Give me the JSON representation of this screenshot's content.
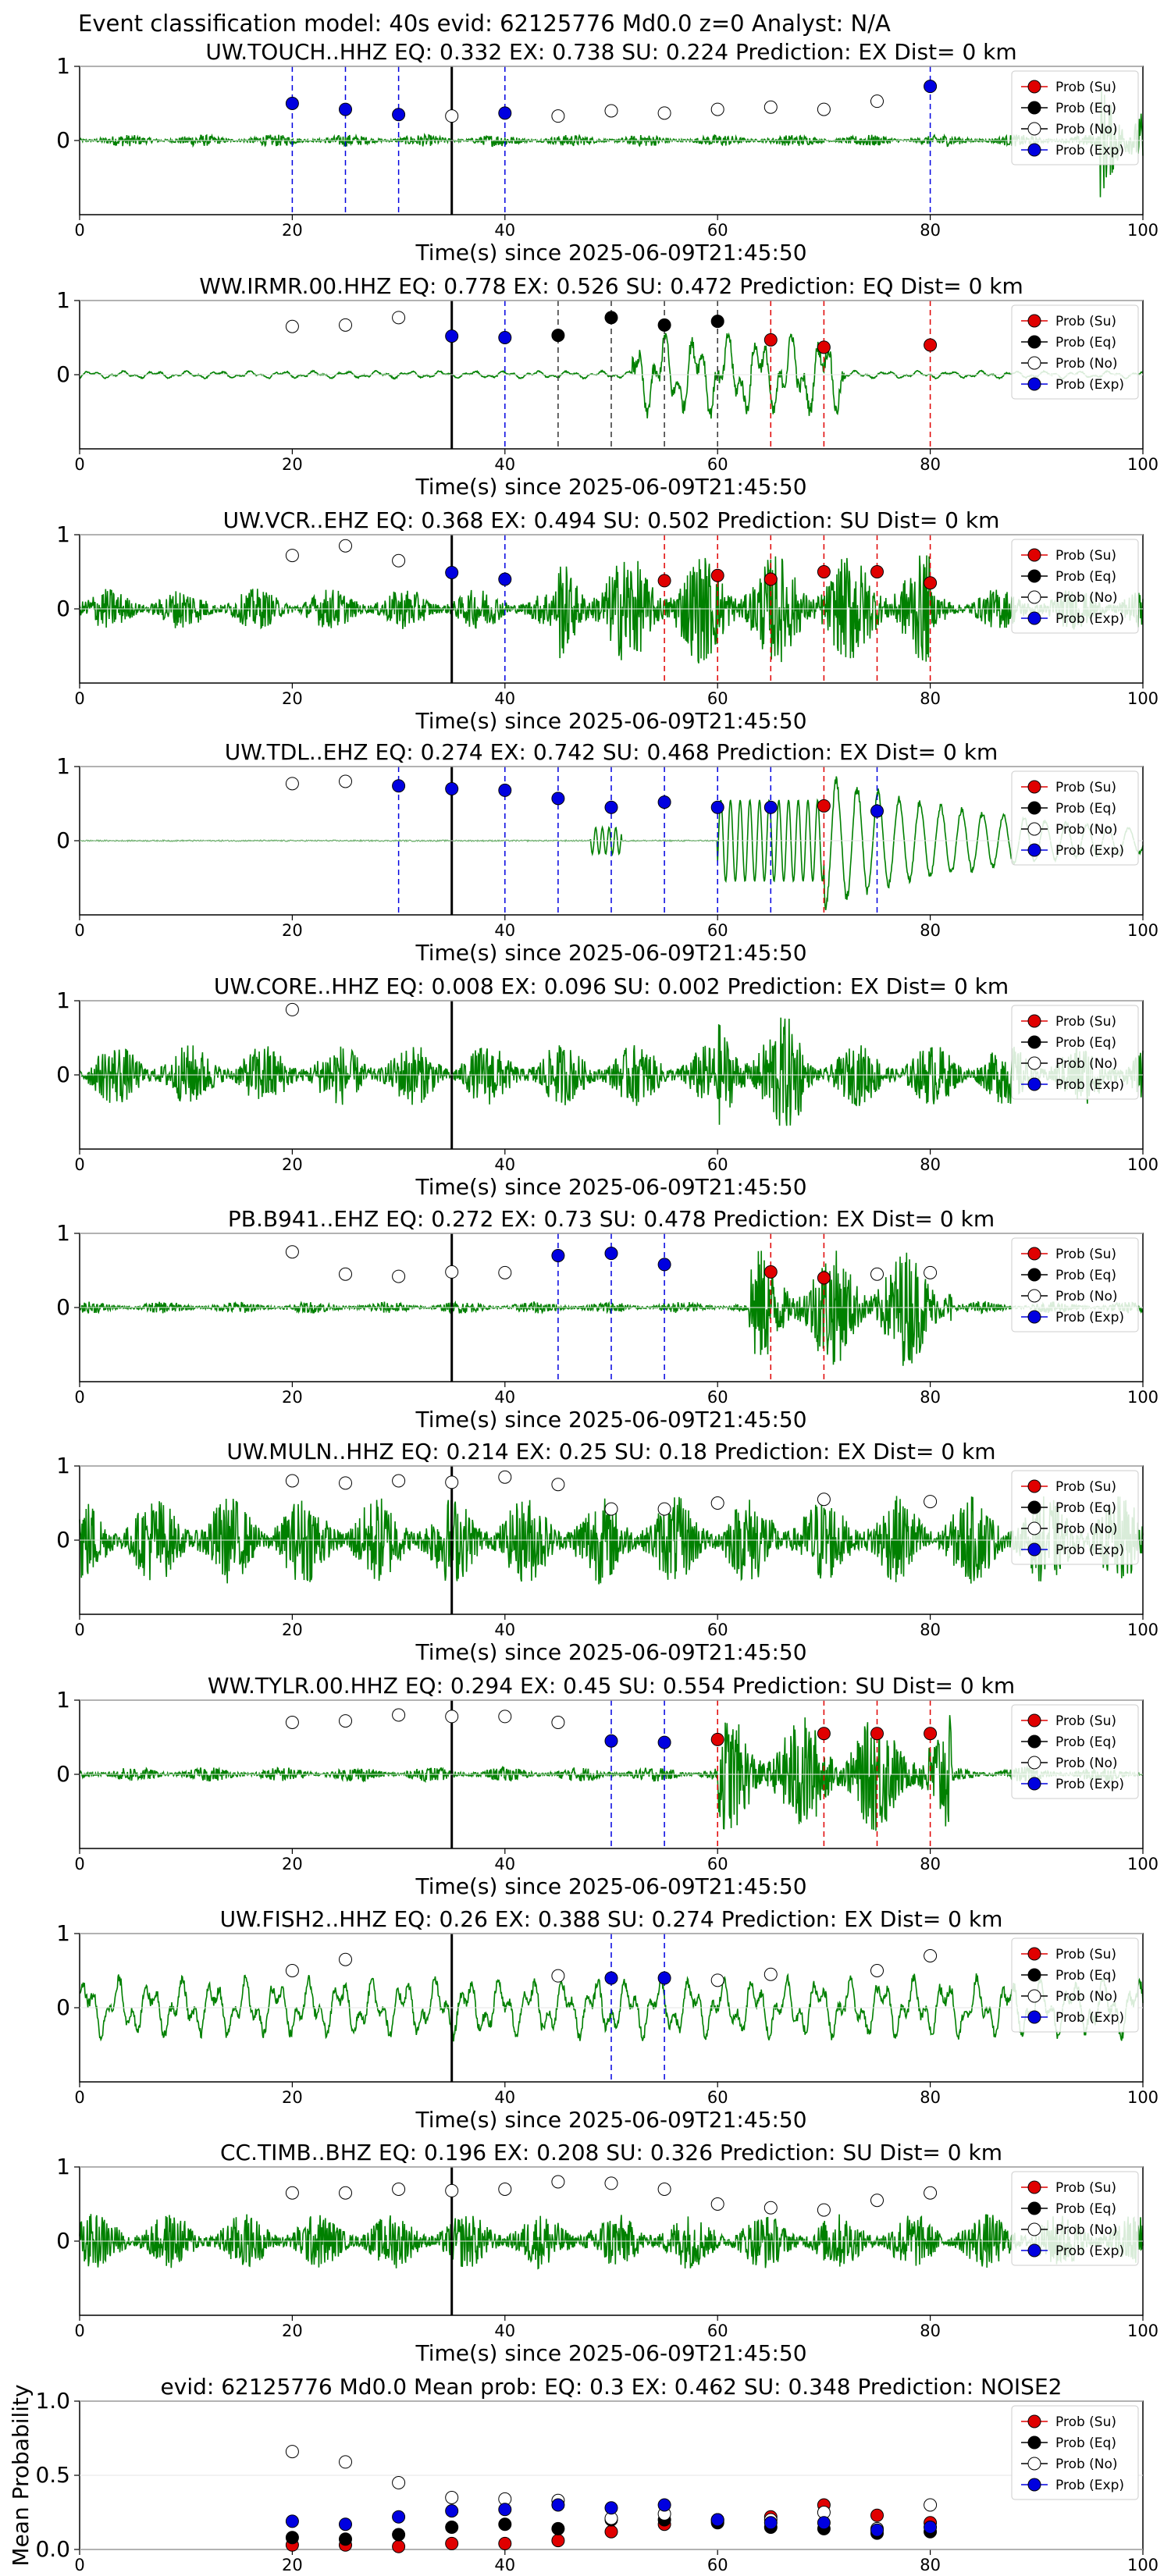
{
  "figure": {
    "suptitle": "Event classification model: 40s evid: 62125776 Md0.0 z=0 Analyst: N/A"
  },
  "legend": {
    "items": [
      {
        "label": "Prob (Su)",
        "color": "#e00000",
        "stroke": "#000000"
      },
      {
        "label": "Prob (Eq)",
        "color": "#000000",
        "stroke": "#000000"
      },
      {
        "label": "Prob (No)",
        "color": "#ffffff",
        "stroke": "#000000"
      },
      {
        "label": "Prob (Exp)",
        "color": "#0000e0",
        "stroke": "#000000"
      }
    ]
  },
  "colors": {
    "waveform": "#008000",
    "su": "#e00000",
    "eq": "#000000",
    "no": "#ffffff",
    "exp": "#0000e0",
    "origin_line": "#000000"
  },
  "chart_data": [
    {
      "type": "line",
      "title": "UW.TOUCH..HHZ   EQ: 0.332  EX: 0.738  SU: 0.224   Prediction: EX    Dist= 0 km",
      "xlabel": "Time(s) since 2025-06-09T21:45:50",
      "xlim": [
        0,
        100
      ],
      "ylim": [
        -1,
        1
      ],
      "xticks": [
        "0",
        "20",
        "40",
        "60",
        "80",
        "100"
      ],
      "yticks": [
        "1",
        "0"
      ],
      "origin_time": 35,
      "waveform": {
        "amplitude": 0.08,
        "burst": [
          96,
          100,
          0.9
        ],
        "style": "noise"
      },
      "points": [
        {
          "t": 20,
          "p": 0.5,
          "c": "exp"
        },
        {
          "t": 25,
          "p": 0.42,
          "c": "exp"
        },
        {
          "t": 30,
          "p": 0.35,
          "c": "exp"
        },
        {
          "t": 35,
          "p": 0.33,
          "c": "no"
        },
        {
          "t": 40,
          "p": 0.37,
          "c": "exp"
        },
        {
          "t": 45,
          "p": 0.33,
          "c": "no"
        },
        {
          "t": 50,
          "p": 0.4,
          "c": "no"
        },
        {
          "t": 55,
          "p": 0.37,
          "c": "no"
        },
        {
          "t": 60,
          "p": 0.42,
          "c": "no"
        },
        {
          "t": 65,
          "p": 0.45,
          "c": "no"
        },
        {
          "t": 70,
          "p": 0.42,
          "c": "no"
        },
        {
          "t": 75,
          "p": 0.53,
          "c": "no"
        },
        {
          "t": 80,
          "p": 0.73,
          "c": "exp"
        }
      ]
    },
    {
      "type": "line",
      "title": "WW.IRMR.00.HHZ   EQ: 0.778  EX: 0.526  SU: 0.472   Prediction: EQ    Dist= 0 km",
      "xlabel": "Time(s) since 2025-06-09T21:45:50",
      "xlim": [
        0,
        100
      ],
      "ylim": [
        -1,
        1
      ],
      "xticks": [
        "0",
        "20",
        "40",
        "60",
        "80",
        "100"
      ],
      "yticks": [
        "1",
        "0"
      ],
      "origin_time": 35,
      "waveform": {
        "amplitude": 0.05,
        "burst": [
          52,
          72,
          0.55
        ],
        "style": "smooth"
      },
      "points": [
        {
          "t": 20,
          "p": 0.65,
          "c": "no"
        },
        {
          "t": 25,
          "p": 0.67,
          "c": "no"
        },
        {
          "t": 30,
          "p": 0.77,
          "c": "no"
        },
        {
          "t": 35,
          "p": 0.52,
          "c": "exp"
        },
        {
          "t": 40,
          "p": 0.5,
          "c": "exp"
        },
        {
          "t": 45,
          "p": 0.53,
          "c": "eq"
        },
        {
          "t": 50,
          "p": 0.77,
          "c": "eq"
        },
        {
          "t": 55,
          "p": 0.67,
          "c": "eq"
        },
        {
          "t": 60,
          "p": 0.72,
          "c": "eq"
        },
        {
          "t": 65,
          "p": 0.47,
          "c": "su"
        },
        {
          "t": 70,
          "p": 0.37,
          "c": "su"
        },
        {
          "t": 80,
          "p": 0.4,
          "c": "su"
        }
      ]
    },
    {
      "type": "line",
      "title": "UW.VCR..EHZ   EQ: 0.368  EX: 0.494  SU: 0.502   Prediction: SU    Dist= 0 km",
      "xlabel": "Time(s) since 2025-06-09T21:45:50",
      "xlim": [
        0,
        100
      ],
      "ylim": [
        -1,
        1
      ],
      "xticks": [
        "0",
        "20",
        "40",
        "60",
        "80",
        "100"
      ],
      "yticks": [
        "1",
        "0"
      ],
      "origin_time": 35,
      "waveform": {
        "amplitude": 0.28,
        "burst": [
          45,
          80,
          0.75
        ],
        "style": "noise"
      },
      "points": [
        {
          "t": 20,
          "p": 0.72,
          "c": "no"
        },
        {
          "t": 25,
          "p": 0.85,
          "c": "no"
        },
        {
          "t": 30,
          "p": 0.65,
          "c": "no"
        },
        {
          "t": 35,
          "p": 0.49,
          "c": "exp"
        },
        {
          "t": 40,
          "p": 0.4,
          "c": "exp"
        },
        {
          "t": 55,
          "p": 0.38,
          "c": "su"
        },
        {
          "t": 60,
          "p": 0.45,
          "c": "su"
        },
        {
          "t": 65,
          "p": 0.4,
          "c": "su"
        },
        {
          "t": 70,
          "p": 0.5,
          "c": "su"
        },
        {
          "t": 75,
          "p": 0.5,
          "c": "su"
        },
        {
          "t": 80,
          "p": 0.35,
          "c": "su"
        }
      ]
    },
    {
      "type": "line",
      "title": "UW.TDL..EHZ   EQ: 0.274  EX: 0.742  SU: 0.468   Prediction: EX    Dist= 0 km",
      "xlabel": "Time(s) since 2025-06-09T21:45:50",
      "xlim": [
        0,
        100
      ],
      "ylim": [
        -1,
        1
      ],
      "xticks": [
        "0",
        "20",
        "40",
        "60",
        "80",
        "100"
      ],
      "yticks": [
        "1",
        "0"
      ],
      "origin_time": 35,
      "waveform": {
        "amplitude": 0.01,
        "burst": [
          60,
          70,
          0.55
        ],
        "style": "tdl"
      },
      "points": [
        {
          "t": 20,
          "p": 0.77,
          "c": "no"
        },
        {
          "t": 25,
          "p": 0.8,
          "c": "no"
        },
        {
          "t": 30,
          "p": 0.74,
          "c": "exp"
        },
        {
          "t": 35,
          "p": 0.7,
          "c": "exp"
        },
        {
          "t": 40,
          "p": 0.68,
          "c": "exp"
        },
        {
          "t": 45,
          "p": 0.57,
          "c": "exp"
        },
        {
          "t": 50,
          "p": 0.45,
          "c": "exp"
        },
        {
          "t": 55,
          "p": 0.52,
          "c": "exp"
        },
        {
          "t": 60,
          "p": 0.45,
          "c": "exp"
        },
        {
          "t": 65,
          "p": 0.45,
          "c": "exp"
        },
        {
          "t": 70,
          "p": 0.47,
          "c": "su"
        },
        {
          "t": 75,
          "p": 0.4,
          "c": "exp"
        }
      ]
    },
    {
      "type": "line",
      "title": "UW.CORE..HHZ   EQ: 0.008  EX: 0.096  SU: 0.002   Prediction: EX    Dist= 0 km",
      "xlabel": "Time(s) since 2025-06-09T21:45:50",
      "xlim": [
        0,
        100
      ],
      "ylim": [
        -1,
        1
      ],
      "xticks": [
        "0",
        "20",
        "40",
        "60",
        "80",
        "100"
      ],
      "yticks": [
        "1",
        "0"
      ],
      "origin_time": 35,
      "waveform": {
        "amplitude": 0.42,
        "burst": [
          60,
          68,
          0.8
        ],
        "style": "noise"
      },
      "points": [
        {
          "t": 20,
          "p": 0.88,
          "c": "no"
        }
      ]
    },
    {
      "type": "line",
      "title": "PB.B941..EHZ   EQ: 0.272  EX: 0.73  SU: 0.478   Prediction: EX    Dist= 0 km",
      "xlabel": "Time(s) since 2025-06-09T21:45:50",
      "xlim": [
        0,
        100
      ],
      "ylim": [
        -1,
        1
      ],
      "xticks": [
        "0",
        "20",
        "40",
        "60",
        "80",
        "100"
      ],
      "yticks": [
        "1",
        "0"
      ],
      "origin_time": 35,
      "waveform": {
        "amplitude": 0.08,
        "burst": [
          63,
          82,
          0.8
        ],
        "style": "noise"
      },
      "points": [
        {
          "t": 20,
          "p": 0.75,
          "c": "no"
        },
        {
          "t": 25,
          "p": 0.45,
          "c": "no"
        },
        {
          "t": 30,
          "p": 0.42,
          "c": "no"
        },
        {
          "t": 35,
          "p": 0.48,
          "c": "no"
        },
        {
          "t": 40,
          "p": 0.47,
          "c": "no"
        },
        {
          "t": 45,
          "p": 0.7,
          "c": "exp"
        },
        {
          "t": 50,
          "p": 0.73,
          "c": "exp"
        },
        {
          "t": 55,
          "p": 0.58,
          "c": "exp"
        },
        {
          "t": 65,
          "p": 0.48,
          "c": "su"
        },
        {
          "t": 70,
          "p": 0.4,
          "c": "su"
        },
        {
          "t": 75,
          "p": 0.45,
          "c": "no"
        },
        {
          "t": 80,
          "p": 0.47,
          "c": "no"
        }
      ]
    },
    {
      "type": "line",
      "title": "UW.MULN..HHZ   EQ: 0.214  EX: 0.25  SU: 0.18   Prediction: EX    Dist= 0 km",
      "xlabel": "Time(s) since 2025-06-09T21:45:50",
      "xlim": [
        0,
        100
      ],
      "ylim": [
        -1,
        1
      ],
      "xticks": [
        "0",
        "20",
        "40",
        "60",
        "80",
        "100"
      ],
      "yticks": [
        "1",
        "0"
      ],
      "origin_time": 35,
      "waveform": {
        "amplitude": 0.6,
        "burst": [
          0,
          0,
          0
        ],
        "style": "noise"
      },
      "points": [
        {
          "t": 20,
          "p": 0.8,
          "c": "no"
        },
        {
          "t": 25,
          "p": 0.77,
          "c": "no"
        },
        {
          "t": 30,
          "p": 0.8,
          "c": "no"
        },
        {
          "t": 35,
          "p": 0.78,
          "c": "no"
        },
        {
          "t": 40,
          "p": 0.85,
          "c": "no"
        },
        {
          "t": 45,
          "p": 0.75,
          "c": "no"
        },
        {
          "t": 50,
          "p": 0.42,
          "c": "no"
        },
        {
          "t": 55,
          "p": 0.42,
          "c": "no"
        },
        {
          "t": 60,
          "p": 0.5,
          "c": "no"
        },
        {
          "t": 70,
          "p": 0.55,
          "c": "no"
        },
        {
          "t": 80,
          "p": 0.52,
          "c": "no"
        }
      ]
    },
    {
      "type": "line",
      "title": "WW.TYLR.00.HHZ   EQ: 0.294  EX: 0.45  SU: 0.554   Prediction: SU    Dist= 0 km",
      "xlabel": "Time(s) since 2025-06-09T21:45:50",
      "xlim": [
        0,
        100
      ],
      "ylim": [
        -1,
        1
      ],
      "xticks": [
        "0",
        "20",
        "40",
        "60",
        "80",
        "100"
      ],
      "yticks": [
        "1",
        "0"
      ],
      "origin_time": 35,
      "waveform": {
        "amplitude": 0.1,
        "burst": [
          60,
          82,
          0.8
        ],
        "style": "noise"
      },
      "points": [
        {
          "t": 20,
          "p": 0.7,
          "c": "no"
        },
        {
          "t": 25,
          "p": 0.72,
          "c": "no"
        },
        {
          "t": 30,
          "p": 0.8,
          "c": "no"
        },
        {
          "t": 35,
          "p": 0.78,
          "c": "no"
        },
        {
          "t": 40,
          "p": 0.78,
          "c": "no"
        },
        {
          "t": 45,
          "p": 0.7,
          "c": "no"
        },
        {
          "t": 50,
          "p": 0.45,
          "c": "exp"
        },
        {
          "t": 55,
          "p": 0.43,
          "c": "exp"
        },
        {
          "t": 60,
          "p": 0.47,
          "c": "su"
        },
        {
          "t": 70,
          "p": 0.55,
          "c": "su"
        },
        {
          "t": 75,
          "p": 0.55,
          "c": "su"
        },
        {
          "t": 80,
          "p": 0.55,
          "c": "su"
        }
      ]
    },
    {
      "type": "line",
      "title": "UW.FISH2..HHZ   EQ: 0.26  EX: 0.388  SU: 0.274   Prediction: EX    Dist= 0 km",
      "xlabel": "Time(s) since 2025-06-09T21:45:50",
      "xlim": [
        0,
        100
      ],
      "ylim": [
        -1,
        1
      ],
      "xticks": [
        "0",
        "20",
        "40",
        "60",
        "80",
        "100"
      ],
      "yticks": [
        "1",
        "0"
      ],
      "origin_time": 35,
      "waveform": {
        "amplitude": 0.4,
        "burst": [
          0,
          0,
          0
        ],
        "style": "smooth"
      },
      "points": [
        {
          "t": 20,
          "p": 0.5,
          "c": "no"
        },
        {
          "t": 25,
          "p": 0.65,
          "c": "no"
        },
        {
          "t": 45,
          "p": 0.43,
          "c": "no"
        },
        {
          "t": 50,
          "p": 0.4,
          "c": "exp"
        },
        {
          "t": 55,
          "p": 0.4,
          "c": "exp"
        },
        {
          "t": 60,
          "p": 0.37,
          "c": "no"
        },
        {
          "t": 65,
          "p": 0.45,
          "c": "no"
        },
        {
          "t": 75,
          "p": 0.5,
          "c": "no"
        },
        {
          "t": 80,
          "p": 0.7,
          "c": "no"
        }
      ]
    },
    {
      "type": "line",
      "title": "CC.TIMB..BHZ   EQ: 0.196  EX: 0.208  SU: 0.326   Prediction: SU    Dist= 0 km",
      "xlabel": "Time(s) since 2025-06-09T21:45:50",
      "xlim": [
        0,
        100
      ],
      "ylim": [
        -1,
        1
      ],
      "xticks": [
        "0",
        "20",
        "40",
        "60",
        "80",
        "100"
      ],
      "yticks": [
        "1",
        "0"
      ],
      "origin_time": 35,
      "waveform": {
        "amplitude": 0.38,
        "burst": [
          0,
          0,
          0
        ],
        "style": "noise"
      },
      "points": [
        {
          "t": 20,
          "p": 0.65,
          "c": "no"
        },
        {
          "t": 25,
          "p": 0.65,
          "c": "no"
        },
        {
          "t": 30,
          "p": 0.7,
          "c": "no"
        },
        {
          "t": 35,
          "p": 0.68,
          "c": "no"
        },
        {
          "t": 40,
          "p": 0.7,
          "c": "no"
        },
        {
          "t": 45,
          "p": 0.8,
          "c": "no"
        },
        {
          "t": 50,
          "p": 0.78,
          "c": "no"
        },
        {
          "t": 55,
          "p": 0.7,
          "c": "no"
        },
        {
          "t": 60,
          "p": 0.5,
          "c": "no"
        },
        {
          "t": 65,
          "p": 0.45,
          "c": "no"
        },
        {
          "t": 70,
          "p": 0.42,
          "c": "no"
        },
        {
          "t": 75,
          "p": 0.55,
          "c": "no"
        },
        {
          "t": 80,
          "p": 0.65,
          "c": "no"
        }
      ]
    },
    {
      "type": "scatter",
      "title": "evid: 62125776  Md0.0   Mean prob:   EQ: 0.3  EX: 0.462  SU: 0.348   Prediction: NOISE2",
      "ylabel": "Mean Probability",
      "xlim": [
        0,
        100
      ],
      "ylim": [
        0,
        1
      ],
      "xticks": [
        "0",
        "20",
        "40",
        "60",
        "80",
        "100"
      ],
      "yticks": [
        "1.0",
        "0.5",
        "0.0"
      ],
      "series": [
        {
          "name": "Prob (Su)",
          "key": "su",
          "x": [
            20,
            25,
            30,
            35,
            40,
            45,
            50,
            55,
            60,
            65,
            70,
            75,
            80
          ],
          "y": [
            0.03,
            0.03,
            0.02,
            0.04,
            0.04,
            0.06,
            0.12,
            0.17,
            0.19,
            0.22,
            0.3,
            0.23,
            0.18
          ]
        },
        {
          "name": "Prob (Eq)",
          "key": "eq",
          "x": [
            20,
            25,
            30,
            35,
            40,
            45,
            50,
            55,
            60,
            65,
            70,
            75,
            80
          ],
          "y": [
            0.08,
            0.07,
            0.1,
            0.15,
            0.17,
            0.14,
            0.2,
            0.2,
            0.18,
            0.15,
            0.14,
            0.11,
            0.12
          ]
        },
        {
          "name": "Prob (No)",
          "key": "no",
          "x": [
            20,
            25,
            30,
            35,
            40,
            45,
            50,
            55,
            60,
            65,
            70,
            75,
            80
          ],
          "y": [
            0.66,
            0.59,
            0.45,
            0.35,
            0.34,
            0.33,
            0.21,
            0.24,
            0.2,
            0.2,
            0.25,
            0.14,
            0.3
          ]
        },
        {
          "name": "Prob (Exp)",
          "key": "exp",
          "x": [
            20,
            25,
            30,
            35,
            40,
            45,
            50,
            55,
            60,
            65,
            70,
            75,
            80
          ],
          "y": [
            0.19,
            0.17,
            0.22,
            0.26,
            0.27,
            0.3,
            0.28,
            0.3,
            0.2,
            0.18,
            0.18,
            0.13,
            0.15
          ]
        }
      ]
    }
  ]
}
